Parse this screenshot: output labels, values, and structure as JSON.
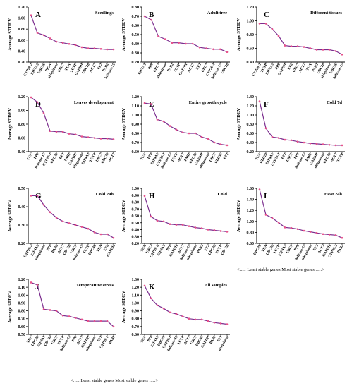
{
  "figure": {
    "footer_right": "<::::: Least stable genes  Most stable genes :::::>",
    "footer_left": "<::::: Least stable genes  Most stable genes :::::>"
  },
  "style": {
    "line_color": "#7b2d8e",
    "marker_color": "#e8508a",
    "axis_color": "#000000"
  },
  "chart_data": [
    {
      "type": "line",
      "panel": "A",
      "title": "Seedlings",
      "ylabel": "Average STDEV",
      "ylim": [
        0.2,
        1.2
      ],
      "yticks": [
        0.2,
        0.4,
        0.6,
        0.8,
        1.0,
        1.2
      ],
      "categories": [
        "CYP20-2",
        "EIF4A3",
        "UBC36",
        "PP2A",
        "ubiquitone",
        "UBC7",
        "TUA",
        "TCTP",
        "GAPDH",
        "UBC28",
        "ACT7",
        "EF2",
        "PAB2",
        "helicase-15"
      ],
      "values": [
        1.05,
        0.73,
        0.69,
        0.63,
        0.57,
        0.55,
        0.53,
        0.51,
        0.47,
        0.45,
        0.45,
        0.44,
        0.43,
        0.43
      ]
    },
    {
      "type": "line",
      "panel": "B",
      "title": "Adult tree",
      "ylabel": "Average STDEV",
      "ylim": [
        0.2,
        0.8
      ],
      "yticks": [
        0.2,
        0.3,
        0.4,
        0.5,
        0.6,
        0.7,
        0.8
      ],
      "categories": [
        "EIF4A3",
        "PP8",
        "UBC7",
        "ubiquitone",
        "PAB2",
        "TCTP",
        "GAPDH",
        "ACT7",
        "EF2",
        "UBC7",
        "CYP20-2",
        "helicase-15",
        "UBC28"
      ],
      "values": [
        0.7,
        0.66,
        0.48,
        0.45,
        0.41,
        0.41,
        0.4,
        0.4,
        0.36,
        0.35,
        0.34,
        0.34,
        0.31
      ]
    },
    {
      "type": "line",
      "panel": "C",
      "title": "Different tissues",
      "ylabel": "Average STDEV",
      "ylim": [
        0.4,
        1.2
      ],
      "yticks": [
        0.4,
        0.6,
        0.8,
        1.0,
        1.2
      ],
      "categories": [
        "CYP20-2",
        "TCTP",
        "EIF4A3",
        "PP8",
        "GAPDH",
        "EF2",
        "UBC7",
        "ACT7",
        "TUA",
        "PAB2",
        "UBC28",
        "ubiquitone",
        "UBC36",
        "helicase-15"
      ],
      "values": [
        0.96,
        0.96,
        0.88,
        0.78,
        0.64,
        0.63,
        0.63,
        0.62,
        0.6,
        0.58,
        0.58,
        0.58,
        0.56,
        0.51
      ]
    },
    {
      "type": "line",
      "panel": "D",
      "title": "Leaves development",
      "ylabel": "Average STDEV",
      "ylim": [
        0.4,
        1.2
      ],
      "yticks": [
        0.4,
        0.6,
        0.8,
        1.0,
        1.2
      ],
      "categories": [
        "TUA",
        "PP8",
        "helicase-15",
        "CYP20-2",
        "UBC28",
        "EF2",
        "PAB2",
        "GAPDH",
        "ubiquitone",
        "EIF4A3",
        "TCTP",
        "UBC7",
        "UBC36",
        "ACT7"
      ],
      "values": [
        1.19,
        1.12,
        0.96,
        0.7,
        0.69,
        0.69,
        0.66,
        0.65,
        0.62,
        0.61,
        0.6,
        0.59,
        0.59,
        0.58
      ]
    },
    {
      "type": "line",
      "panel": "E",
      "title": "Entire growth cycle",
      "ylabel": "Average STDEV",
      "ylim": [
        0.6,
        1.2
      ],
      "yticks": [
        0.6,
        0.7,
        0.8,
        0.9,
        1.0,
        1.1,
        1.2
      ],
      "categories": [
        "TUA",
        "PP8",
        "EIF4A3",
        "CYP20-2",
        "helicase-15",
        "TCTP",
        "ACT7",
        "PAB2",
        "UBC28",
        "GAPDH",
        "ubiquitone",
        "UBC7",
        "UBC36",
        "EF2"
      ],
      "values": [
        1.13,
        1.12,
        0.95,
        0.93,
        0.88,
        0.84,
        0.81,
        0.8,
        0.8,
        0.76,
        0.74,
        0.7,
        0.68,
        0.67
      ]
    },
    {
      "type": "line",
      "panel": "F",
      "title": "Cold 7d",
      "ylabel": "Average STDEV",
      "ylim": [
        0.2,
        1.4
      ],
      "yticks": [
        0.2,
        0.4,
        0.6,
        0.8,
        1.0,
        1.2,
        1.4
      ],
      "categories": [
        "TUA",
        "UBC28",
        "EIF4A3",
        "CYP20-2",
        "EF2",
        "UBC7",
        "PP8",
        "helicase-15",
        "PAB2",
        "GAPDH",
        "ubiquitone",
        "UBC36",
        "ACT7",
        "TCTP"
      ],
      "values": [
        1.3,
        0.71,
        0.52,
        0.5,
        0.46,
        0.45,
        0.42,
        0.4,
        0.38,
        0.37,
        0.36,
        0.35,
        0.34,
        0.34
      ]
    },
    {
      "type": "line",
      "panel": "G",
      "title": "Cold 24h",
      "ylabel": "Average STDEV",
      "ylim": [
        0.2,
        0.5
      ],
      "yticks": [
        0.2,
        0.3,
        0.4,
        0.5
      ],
      "categories": [
        "CYP20-2",
        "EIF4A3",
        "ubiquitone",
        "PP8",
        "PAB2",
        "ACT7",
        "UBC28",
        "UBC7",
        "helicase-15",
        "TCTP",
        "UBC36",
        "TUA",
        "EF2",
        "GAPDH"
      ],
      "values": [
        0.46,
        0.46,
        0.41,
        0.37,
        0.34,
        0.32,
        0.31,
        0.3,
        0.29,
        0.28,
        0.26,
        0.25,
        0.25,
        0.23
      ]
    },
    {
      "type": "line",
      "panel": "H",
      "title": "Cold",
      "ylabel": "Average STDEV",
      "ylim": [
        0.2,
        1.0
      ],
      "yticks": [
        0.2,
        0.3,
        0.4,
        0.5,
        0.6,
        0.7,
        0.8,
        0.9,
        1.0
      ],
      "categories": [
        "TUA",
        "UBC7",
        "CYP20-2",
        "EIF4A3",
        "PP8",
        "GAPDH",
        "ACT7",
        "helicase-15",
        "ubiquitone",
        "PAB2",
        "EF2",
        "UBC36",
        "TCTP",
        "UBC28"
      ],
      "values": [
        0.89,
        0.59,
        0.53,
        0.52,
        0.48,
        0.47,
        0.47,
        0.45,
        0.43,
        0.42,
        0.4,
        0.39,
        0.38,
        0.37
      ]
    },
    {
      "type": "line",
      "panel": "I",
      "title": "Heat 24h",
      "ylabel": "Average STDEV",
      "ylim": [
        0.6,
        1.6
      ],
      "yticks": [
        0.6,
        0.8,
        1.0,
        1.2,
        1.4,
        1.6
      ],
      "categories": [
        "UBC28",
        "TUA",
        "UBC36",
        "TCTP",
        "EIF4A3",
        "UBC7",
        "PP8",
        "helicase-15",
        "ubiquitone",
        "EF2",
        "ACT7",
        "GAPDH",
        "CYP20-2",
        "PAB2"
      ],
      "values": [
        1.58,
        1.12,
        1.06,
        0.98,
        0.89,
        0.88,
        0.86,
        0.83,
        0.81,
        0.79,
        0.77,
        0.76,
        0.75,
        0.7
      ]
    },
    {
      "type": "line",
      "panel": "J",
      "title": "Temperature stress",
      "ylabel": "Average STDEV",
      "ylim": [
        0.5,
        1.2
      ],
      "yticks": [
        0.5,
        0.6,
        0.7,
        0.8,
        0.9,
        1.0,
        1.1,
        1.2
      ],
      "categories": [
        "TUA",
        "UBC28",
        "EIF4A3",
        "UBC36",
        "UBC7",
        "TCTP",
        "helicase-15",
        "PP8",
        "ACT7",
        "GAPDH",
        "ubiquitone",
        "EF2",
        "CYP20-2",
        "PAB2"
      ],
      "values": [
        1.16,
        1.13,
        0.82,
        0.81,
        0.8,
        0.74,
        0.73,
        0.71,
        0.69,
        0.67,
        0.67,
        0.67,
        0.67,
        0.6
      ]
    },
    {
      "type": "line",
      "panel": "K",
      "title": "All samples",
      "ylabel": "Average STDEV",
      "ylim": [
        0.6,
        1.3
      ],
      "yticks": [
        0.6,
        0.7,
        0.8,
        0.9,
        1.0,
        1.1,
        1.2,
        1.3
      ],
      "categories": [
        "TUA",
        "PP8",
        "EIF4A3",
        "UBC28",
        "CYP20-2",
        "helicase-15",
        "TCTP",
        "ACT7",
        "UBC7",
        "UBC36",
        "GAPDH",
        "PAB2",
        "EF2",
        "ubiquitone"
      ],
      "values": [
        1.22,
        1.06,
        0.97,
        0.93,
        0.88,
        0.86,
        0.83,
        0.8,
        0.79,
        0.79,
        0.77,
        0.75,
        0.74,
        0.73
      ]
    }
  ]
}
